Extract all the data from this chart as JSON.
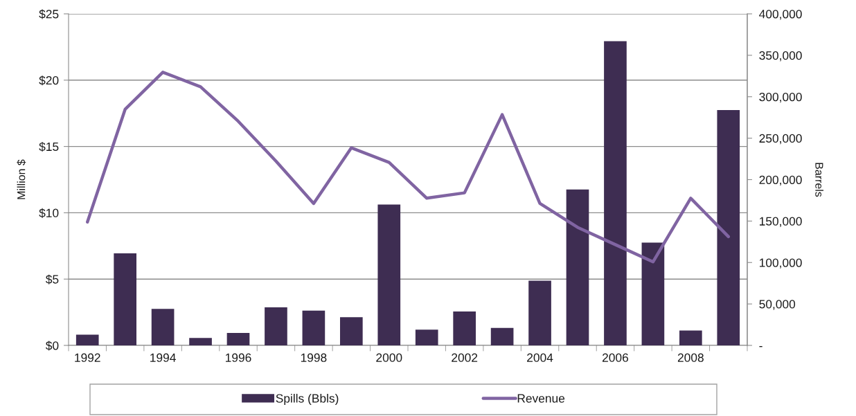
{
  "chart_data": {
    "type": "bar",
    "categories": [
      "1992",
      null,
      "1994",
      null,
      "1996",
      null,
      "1998",
      null,
      "2000",
      null,
      "2002",
      null,
      "2004",
      null,
      "2006",
      null,
      "2008",
      null
    ],
    "series": [
      {
        "name": "Spills (Bbls)",
        "axis": "y2",
        "color": "#3e2d52",
        "values": [
          13000,
          111000,
          44000,
          9000,
          15000,
          46000,
          42000,
          34000,
          170000,
          19000,
          41000,
          21000,
          78000,
          188000,
          367000,
          124000,
          18000,
          284000
        ]
      },
      {
        "name": "Revenue",
        "type": "line",
        "axis": "y",
        "color": "#8064a2",
        "values": [
          9.3,
          17.8,
          20.6,
          19.5,
          16.9,
          13.9,
          10.7,
          14.9,
          13.8,
          11.1,
          11.5,
          17.4,
          10.7,
          8.9,
          7.6,
          6.3,
          11.1,
          8.2
        ]
      }
    ],
    "ylabel": "Million $",
    "y2label": "Barrels",
    "ylim": [
      0,
      25
    ],
    "yticks": [
      {
        "value": 0,
        "label": "$0"
      },
      {
        "value": 5,
        "label": "$5"
      },
      {
        "value": 10,
        "label": "$10"
      },
      {
        "value": 15,
        "label": "$15"
      },
      {
        "value": 20,
        "label": "$20"
      },
      {
        "value": 25,
        "label": "$25"
      }
    ],
    "y2lim": [
      0,
      400000
    ],
    "y2ticks": [
      {
        "value": 0,
        "label": "-"
      },
      {
        "value": 50000,
        "label": "50,000"
      },
      {
        "value": 100000,
        "label": "100,000"
      },
      {
        "value": 150000,
        "label": "150,000"
      },
      {
        "value": 200000,
        "label": "200,000"
      },
      {
        "value": 250000,
        "label": "250,000"
      },
      {
        "value": 300000,
        "label": "300,000"
      },
      {
        "value": 350000,
        "label": "350,000"
      },
      {
        "value": 400000,
        "label": "400,000"
      }
    ],
    "grid": "y",
    "legend": "bottom"
  }
}
